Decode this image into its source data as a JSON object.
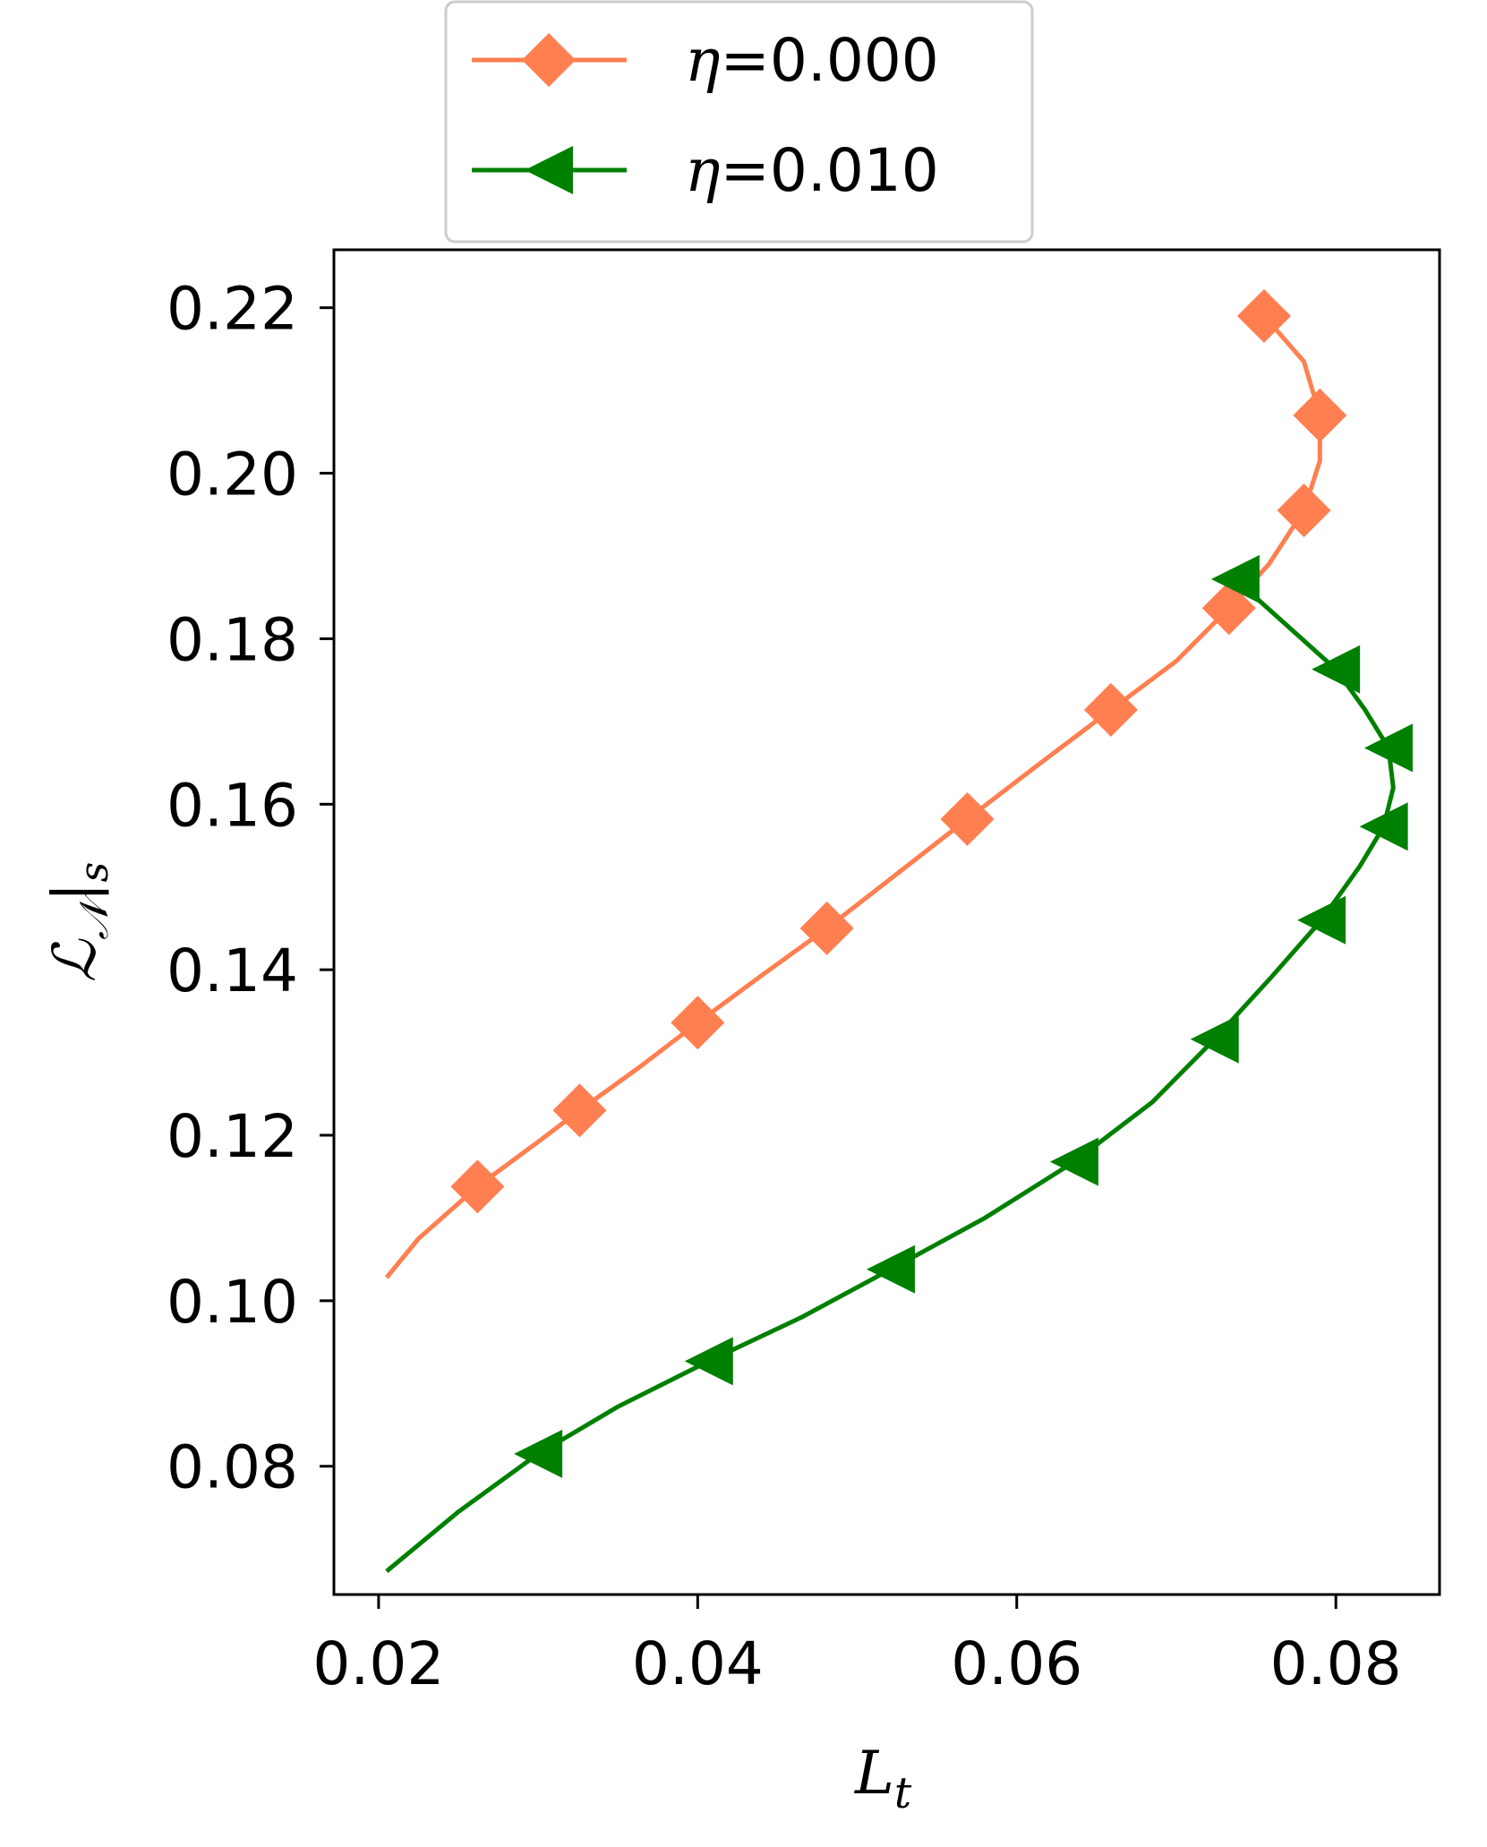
{
  "chart_data": {
    "type": "line",
    "xlabel": "L",
    "xlabel_sub": "t",
    "ylabel_main": "ℒ",
    "ylabel_sub": "𝒩",
    "ylabel_tail": "|",
    "ylabel_tail_sub": "s",
    "xlim": [
      0.0172,
      0.0865
    ],
    "ylim": [
      0.0645,
      0.227
    ],
    "xticks": [
      0.02,
      0.04,
      0.06,
      0.08
    ],
    "xtick_labels": [
      "0.02",
      "0.04",
      "0.06",
      "0.08"
    ],
    "yticks": [
      0.08,
      0.1,
      0.12,
      0.14,
      0.16,
      0.18,
      0.2,
      0.22
    ],
    "ytick_labels": [
      "0.08",
      "0.10",
      "0.12",
      "0.14",
      "0.16",
      "0.18",
      "0.20",
      "0.22"
    ],
    "grid": false,
    "legend_position": "top-center, above plot",
    "series": [
      {
        "name": "η=0.000",
        "legend_symbol": "η",
        "legend_value": "=0.000",
        "color": "#FF7F50",
        "marker": "diamond",
        "line": [
          [
            0.0205,
            0.1028
          ],
          [
            0.0225,
            0.1075
          ],
          [
            0.0262,
            0.1138
          ],
          [
            0.03,
            0.1192
          ],
          [
            0.0326,
            0.123
          ],
          [
            0.0364,
            0.1283
          ],
          [
            0.04,
            0.1336
          ],
          [
            0.044,
            0.1393
          ],
          [
            0.0481,
            0.145
          ],
          [
            0.0525,
            0.1516
          ],
          [
            0.0569,
            0.1582
          ],
          [
            0.0615,
            0.165
          ],
          [
            0.0659,
            0.1714
          ],
          [
            0.07,
            0.1773
          ],
          [
            0.0733,
            0.1837
          ],
          [
            0.0758,
            0.189
          ],
          [
            0.078,
            0.1955
          ],
          [
            0.079,
            0.2015
          ],
          [
            0.079,
            0.207
          ],
          [
            0.078,
            0.2135
          ],
          [
            0.0755,
            0.219
          ]
        ],
        "markers": [
          [
            0.0262,
            0.1138
          ],
          [
            0.0326,
            0.123
          ],
          [
            0.04,
            0.1336
          ],
          [
            0.0481,
            0.145
          ],
          [
            0.0569,
            0.1582
          ],
          [
            0.0659,
            0.1714
          ],
          [
            0.0733,
            0.1837
          ],
          [
            0.078,
            0.1955
          ],
          [
            0.079,
            0.207
          ],
          [
            0.0755,
            0.219
          ]
        ]
      },
      {
        "name": "η=0.010",
        "legend_symbol": "η",
        "legend_value": "=0.010",
        "color": "#008000",
        "marker": "triangle-left",
        "line": [
          [
            0.0205,
            0.0673
          ],
          [
            0.025,
            0.0745
          ],
          [
            0.03,
            0.0815
          ],
          [
            0.035,
            0.0872
          ],
          [
            0.0407,
            0.0927
          ],
          [
            0.0465,
            0.098
          ],
          [
            0.0521,
            0.1038
          ],
          [
            0.058,
            0.11
          ],
          [
            0.0636,
            0.1168
          ],
          [
            0.0685,
            0.124
          ],
          [
            0.0724,
            0.1316
          ],
          [
            0.076,
            0.1392
          ],
          [
            0.0791,
            0.146
          ],
          [
            0.0815,
            0.1525
          ],
          [
            0.083,
            0.1573
          ],
          [
            0.0836,
            0.162
          ],
          [
            0.0833,
            0.1668
          ],
          [
            0.0818,
            0.1715
          ],
          [
            0.08,
            0.1763
          ],
          [
            0.077,
            0.1815
          ],
          [
            0.0737,
            0.1872
          ]
        ],
        "markers": [
          [
            0.03,
            0.0815
          ],
          [
            0.0407,
            0.0927
          ],
          [
            0.0521,
            0.1038
          ],
          [
            0.0636,
            0.1168
          ],
          [
            0.0724,
            0.1316
          ],
          [
            0.0791,
            0.146
          ],
          [
            0.083,
            0.1573
          ],
          [
            0.0833,
            0.1668
          ],
          [
            0.08,
            0.1763
          ],
          [
            0.0737,
            0.1872
          ]
        ]
      }
    ]
  }
}
